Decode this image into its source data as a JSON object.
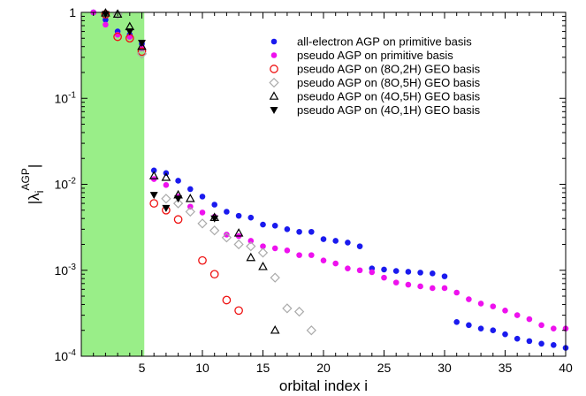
{
  "chart_data": {
    "type": "scatter",
    "xlabel": "orbital index i",
    "ylabel": {
      "base": "|λ",
      "sub": "i",
      "sup": "AGP",
      "close": "|"
    },
    "xlim": [
      0,
      40
    ],
    "ylim": [
      0.0001,
      1
    ],
    "yscale": "log",
    "xticks": [
      5,
      10,
      15,
      20,
      25,
      30,
      35,
      40
    ],
    "yticks": [
      {
        "value": 0.0001,
        "base": "10",
        "exp": "-4"
      },
      {
        "value": 0.001,
        "base": "10",
        "exp": "-3"
      },
      {
        "value": 0.01,
        "base": "10",
        "exp": "-2"
      },
      {
        "value": 0.1,
        "base": "10",
        "exp": "-1"
      },
      {
        "value": 1,
        "base": "1",
        "exp": ""
      }
    ],
    "shaded_region": {
      "x": [
        0,
        5.2
      ],
      "color": "#99ee88"
    },
    "legend_position": "top-right",
    "series": [
      {
        "name": "all-electron AGP on primitive basis",
        "marker": "filled-circle",
        "color": "#1a1aee",
        "points": [
          [
            1,
            1
          ],
          [
            2,
            0.82
          ],
          [
            3,
            0.6
          ],
          [
            4,
            0.55
          ],
          [
            5,
            0.43
          ],
          [
            6,
            0.0145
          ],
          [
            7,
            0.0135
          ],
          [
            8,
            0.011
          ],
          [
            9,
            0.0088
          ],
          [
            10,
            0.0072
          ],
          [
            11,
            0.0058
          ],
          [
            12,
            0.0048
          ],
          [
            13,
            0.0043
          ],
          [
            14,
            0.0041
          ],
          [
            15,
            0.0034
          ],
          [
            16,
            0.0033
          ],
          [
            17,
            0.003
          ],
          [
            18,
            0.0028
          ],
          [
            19,
            0.0028
          ],
          [
            20,
            0.0023
          ],
          [
            21,
            0.0022
          ],
          [
            22,
            0.0021
          ],
          [
            23,
            0.0019
          ],
          [
            24,
            0.00105
          ],
          [
            25,
            0.00102
          ],
          [
            26,
            0.00098
          ],
          [
            27,
            0.00096
          ],
          [
            28,
            0.00094
          ],
          [
            29,
            0.00092
          ],
          [
            30,
            0.00085
          ],
          [
            31,
            0.00025
          ],
          [
            32,
            0.00023
          ],
          [
            33,
            0.00021
          ],
          [
            34,
            0.0002
          ],
          [
            35,
            0.00018
          ],
          [
            36,
            0.00016
          ],
          [
            37,
            0.00015
          ],
          [
            38,
            0.00014
          ],
          [
            39,
            0.000135
          ],
          [
            40,
            0.000125
          ]
        ]
      },
      {
        "name": "pseudo AGP on primitive basis",
        "marker": "filled-circle",
        "color": "#ee11ee",
        "points": [
          [
            1,
            1
          ],
          [
            2,
            0.72
          ],
          [
            3,
            0.55
          ],
          [
            4,
            0.52
          ],
          [
            5,
            0.38
          ],
          [
            6,
            0.0115
          ],
          [
            7,
            0.0098
          ],
          [
            8,
            0.0072
          ],
          [
            9,
            0.0055
          ],
          [
            10,
            0.0047
          ],
          [
            11,
            0.0042
          ],
          [
            12,
            0.0026
          ],
          [
            13,
            0.0025
          ],
          [
            14,
            0.0022
          ],
          [
            15,
            0.0019
          ],
          [
            16,
            0.0018
          ],
          [
            17,
            0.0017
          ],
          [
            18,
            0.0015
          ],
          [
            19,
            0.0015
          ],
          [
            20,
            0.0013
          ],
          [
            21,
            0.0012
          ],
          [
            22,
            0.00105
          ],
          [
            23,
            0.001
          ],
          [
            24,
            0.00095
          ],
          [
            25,
            0.00082
          ],
          [
            26,
            0.00072
          ],
          [
            27,
            0.00068
          ],
          [
            28,
            0.00065
          ],
          [
            29,
            0.00062
          ],
          [
            30,
            0.00062
          ],
          [
            31,
            0.00055
          ],
          [
            32,
            0.00046
          ],
          [
            33,
            0.00041
          ],
          [
            34,
            0.00038
          ],
          [
            35,
            0.00034
          ],
          [
            36,
            0.0003
          ],
          [
            37,
            0.00027
          ],
          [
            38,
            0.00023
          ],
          [
            39,
            0.00021
          ],
          [
            40,
            0.00021
          ]
        ]
      },
      {
        "name": "pseudo AGP on (8O,2H) GEO basis",
        "marker": "open-circle",
        "color": "#ee1111",
        "points": [
          [
            2,
            0.95
          ],
          [
            3,
            0.52
          ],
          [
            4,
            0.5
          ],
          [
            5,
            0.35
          ],
          [
            6,
            0.006
          ],
          [
            7,
            0.005
          ],
          [
            8,
            0.0039
          ],
          [
            10,
            0.0013
          ],
          [
            11,
            0.0009
          ],
          [
            12,
            0.00045
          ],
          [
            13,
            0.00034
          ]
        ]
      },
      {
        "name": "pseudo AGP on (8O,5H) GEO basis",
        "marker": "open-diamond",
        "color": "#aaaaaa",
        "points": [
          [
            3,
            0.95
          ],
          [
            5,
            0.33
          ],
          [
            7,
            0.0068
          ],
          [
            8,
            0.006
          ],
          [
            9,
            0.0048
          ],
          [
            10,
            0.0035
          ],
          [
            11,
            0.0029
          ],
          [
            12,
            0.0024
          ],
          [
            13,
            0.002
          ],
          [
            14,
            0.0019
          ],
          [
            15,
            0.0016
          ],
          [
            16,
            0.00082
          ],
          [
            17,
            0.00036
          ],
          [
            18,
            0.00033
          ],
          [
            19,
            0.0002
          ]
        ]
      },
      {
        "name": "pseudo AGP on (4O,5H) GEO basis",
        "marker": "open-triangle-up",
        "color": "#000000",
        "points": [
          [
            2,
            0.98
          ],
          [
            3,
            0.95
          ],
          [
            4,
            0.68
          ],
          [
            5,
            0.4
          ],
          [
            6,
            0.0125
          ],
          [
            7,
            0.012
          ],
          [
            8,
            0.0075
          ],
          [
            9,
            0.0068
          ],
          [
            11,
            0.0041
          ],
          [
            13,
            0.0027
          ],
          [
            14,
            0.0014
          ],
          [
            15,
            0.0011
          ],
          [
            16,
            0.0002
          ]
        ]
      },
      {
        "name": "pseudo AGP on (4O,1H) GEO basis",
        "marker": "filled-triangle-down",
        "color": "#000000",
        "points": [
          [
            2,
            0.95
          ],
          [
            4,
            0.6
          ],
          [
            5,
            0.44
          ],
          [
            6,
            0.0075
          ],
          [
            7,
            0.0053
          ],
          [
            8,
            0.0068
          ],
          [
            11,
            0.004
          ]
        ]
      }
    ]
  }
}
